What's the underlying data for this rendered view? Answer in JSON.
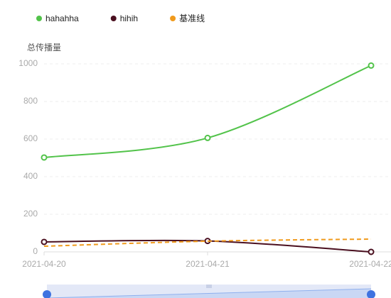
{
  "chart_data": {
    "type": "line",
    "y_axis_label": "总传播量",
    "categories": [
      "2021-04-20",
      "2021-04-21",
      "2021-04-22"
    ],
    "series": [
      {
        "name": "hahahha",
        "color": "#52c34a",
        "values": [
          502,
          606,
          991
        ],
        "dashed": false,
        "markers": true
      },
      {
        "name": "hihih",
        "color": "#4a0f1f",
        "values": [
          53,
          58,
          0
        ],
        "dashed": false,
        "markers": true
      },
      {
        "name": "基准线",
        "color": "#f09a1c",
        "values": [
          30,
          57,
          68
        ],
        "dashed": true,
        "markers": false
      }
    ],
    "ylim": [
      0,
      1000
    ],
    "yticks": [
      0,
      200,
      400,
      600,
      800,
      1000
    ],
    "grid": true,
    "legend": "top-left"
  }
}
